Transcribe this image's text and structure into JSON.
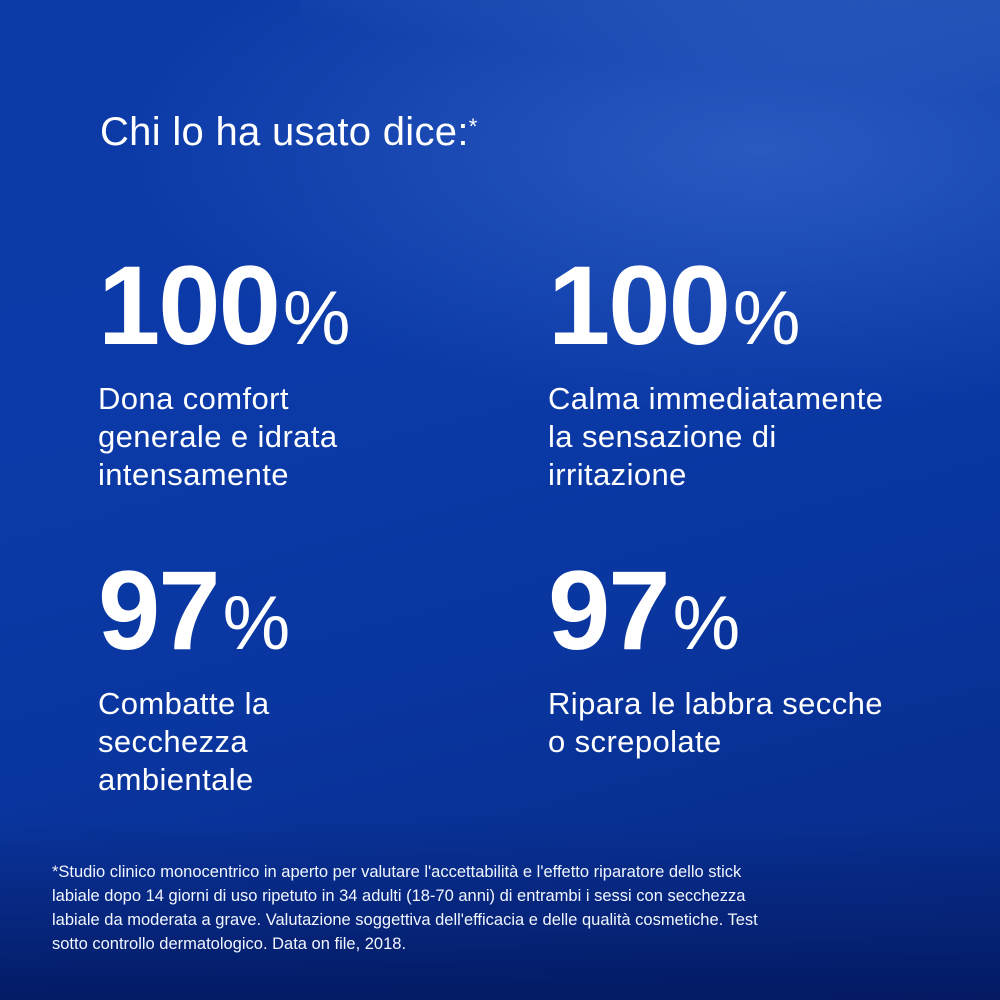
{
  "heading": {
    "text": "Chi lo ha usato dice:",
    "asterisk": "*"
  },
  "stats": [
    {
      "number": "100",
      "percent": "%",
      "text": "Dona comfort\ngenerale e idrata\nintensamente"
    },
    {
      "number": "100",
      "percent": "%",
      "text": "Calma immediatamente\nla sensazione di\nirritazione"
    },
    {
      "number": "97",
      "percent": "%",
      "text": "Combatte la\nsecchezza\nambientale"
    },
    {
      "number": "97",
      "percent": "%",
      "text": "Ripara le labbra secche\no screpolate"
    }
  ],
  "footnote": "*Studio clinico monocentrico in aperto per valutare l'accettabilità e l'effetto riparatore dello stick\nlabiale dopo 14 giorni di uso ripetuto in 34 adulti (18-70 anni) di entrambi i sessi con secchezza\nlabiale da moderata a grave. Valutazione soggettiva dell'efficacia e delle qualità cosmetiche. Test\nsotto controllo dermatologico. Data on file, 2018.",
  "colors": {
    "background": "#0b3aa8",
    "text": "#ffffff"
  }
}
